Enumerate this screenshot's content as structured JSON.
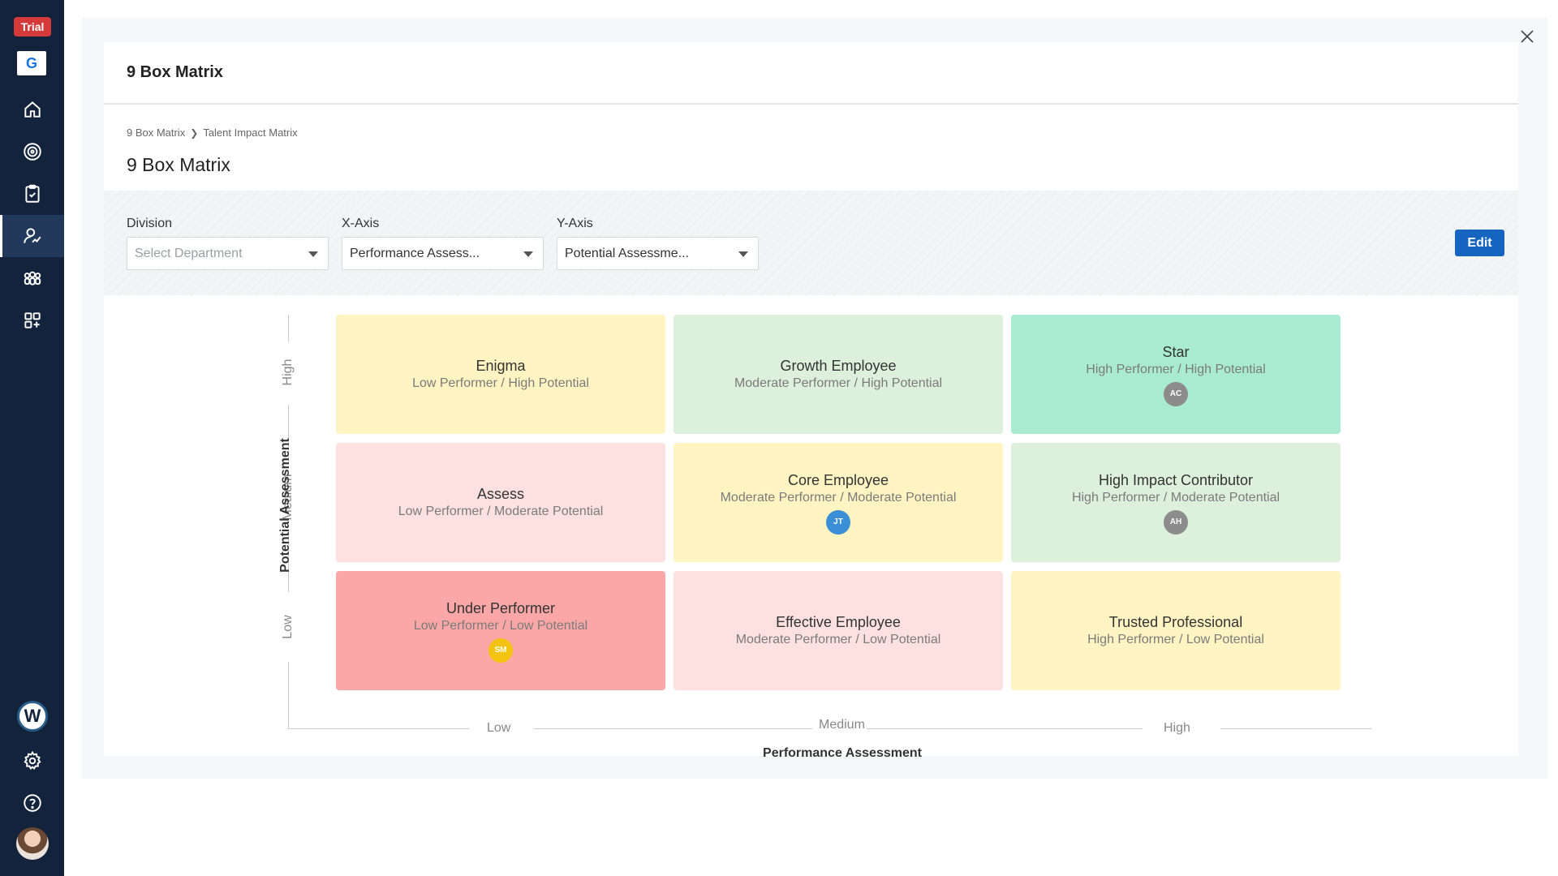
{
  "sidebar": {
    "trial_label": "Trial",
    "brand_letter": "G",
    "workspace_letter": "W",
    "nav_icons": [
      "home-icon",
      "goals-icon",
      "tasks-icon",
      "performance-icon",
      "team-icon",
      "apps-icon"
    ],
    "active_item": "performance-icon",
    "bottom_icons": [
      "settings-icon",
      "help-icon"
    ]
  },
  "header": {
    "title": "9 Box Matrix"
  },
  "breadcrumb": {
    "items": [
      "9 Box Matrix",
      "Talent Impact Matrix"
    ]
  },
  "page_title": "9 Box Matrix",
  "filters": {
    "division": {
      "label": "Division",
      "placeholder": "Select Department"
    },
    "x_axis": {
      "label": "X-Axis",
      "value": "Performance Assess..."
    },
    "y_axis": {
      "label": "Y-Axis",
      "value": "Potential Assessme..."
    },
    "edit_label": "Edit"
  },
  "matrix": {
    "cells": [
      {
        "title": "Enigma",
        "subtitle": "Low Performer / High Potential",
        "color": "#fff4c2",
        "chips": []
      },
      {
        "title": "Growth Employee",
        "subtitle": "Moderate Performer / High Potential",
        "color": "#dcf0dc",
        "chips": []
      },
      {
        "title": "Star",
        "subtitle": "High Performer / High Potential",
        "color": "#a8ebd1",
        "chips": [
          {
            "initials": "AC",
            "color": "#8c8c8c"
          }
        ]
      },
      {
        "title": "Assess",
        "subtitle": "Low Performer / Moderate Potential",
        "color": "#fde0e0",
        "chips": []
      },
      {
        "title": "Core Employee",
        "subtitle": "Moderate Performer / Moderate Potential",
        "color": "#fff4c2",
        "chips": [
          {
            "initials": "JT",
            "color": "#3a8fd6"
          }
        ]
      },
      {
        "title": "High Impact Contributor",
        "subtitle": "High Performer / Moderate Potential",
        "color": "#dcf0dc",
        "chips": [
          {
            "initials": "AH",
            "color": "#8c8c8c"
          }
        ]
      },
      {
        "title": "Under Performer",
        "subtitle": "Low Performer / Low Potential",
        "color": "#fba7a7",
        "chips": [
          {
            "initials": "SM",
            "color": "#f2c40f"
          }
        ]
      },
      {
        "title": "Effective Employee",
        "subtitle": "Moderate Performer / Low Potential",
        "color": "#fde0e0",
        "chips": []
      },
      {
        "title": "Trusted Professional",
        "subtitle": "High Performer / Low Potential",
        "color": "#fff4c2",
        "chips": []
      }
    ],
    "y_axis": {
      "title": "Potential Assessment",
      "ticks": [
        "High",
        "Medium",
        "Low"
      ]
    },
    "x_axis": {
      "title": "Performance Assessment",
      "ticks": [
        "Low",
        "Medium",
        "High"
      ]
    }
  }
}
